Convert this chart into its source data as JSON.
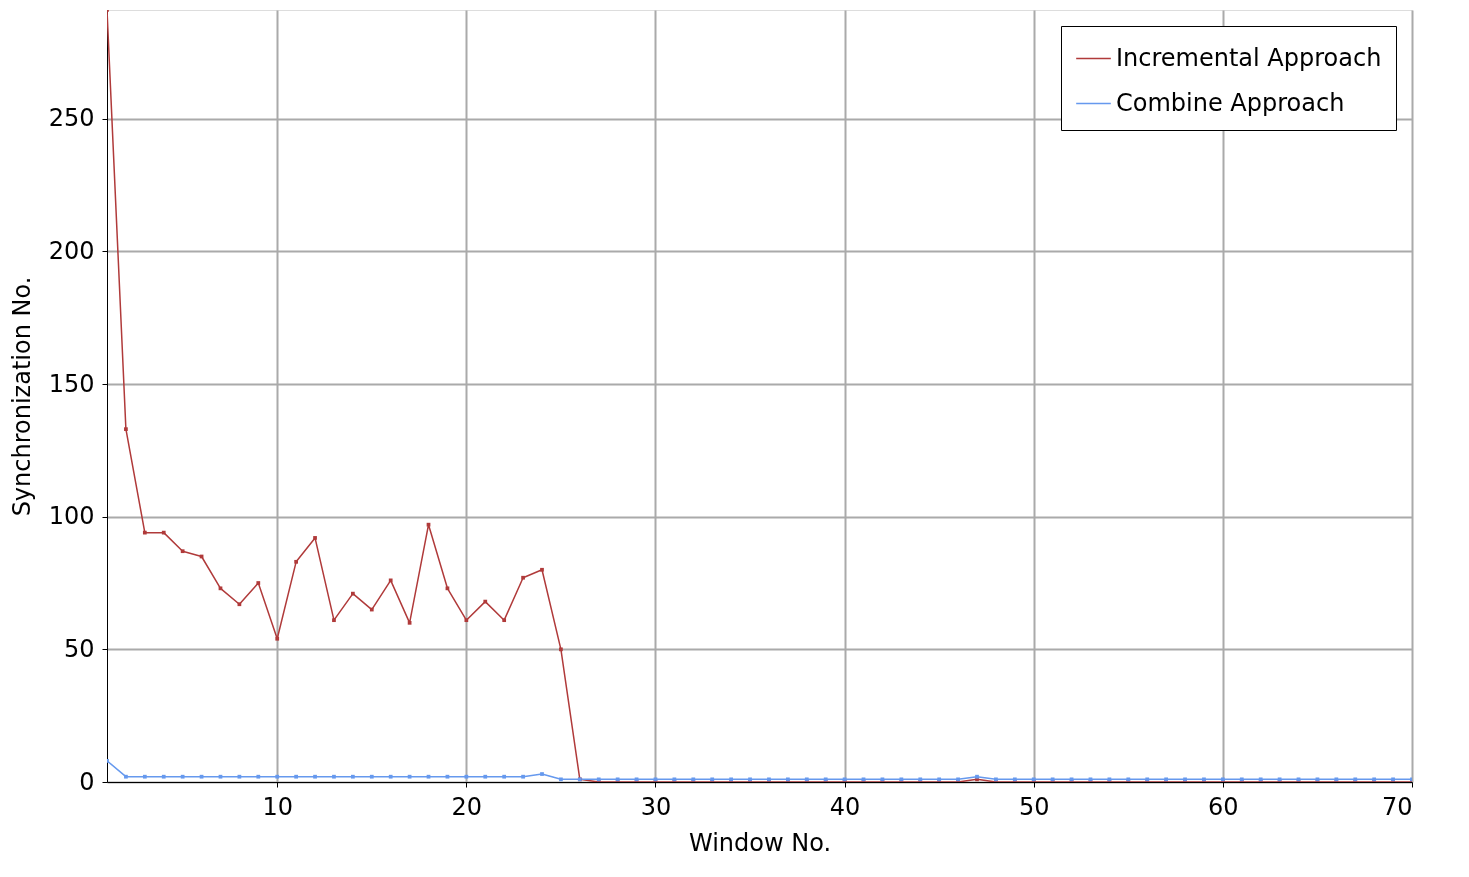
{
  "chart_data": {
    "type": "line",
    "xlabel": "Window No.",
    "ylabel": "Synchronization No.",
    "x": [
      1,
      2,
      3,
      4,
      5,
      6,
      7,
      8,
      9,
      10,
      11,
      12,
      13,
      14,
      15,
      16,
      17,
      18,
      19,
      20,
      21,
      22,
      23,
      24,
      25,
      26,
      27,
      28,
      29,
      30,
      31,
      32,
      33,
      34,
      35,
      36,
      37,
      38,
      39,
      40,
      41,
      42,
      43,
      44,
      45,
      46,
      47,
      48,
      49,
      50,
      51,
      52,
      53,
      54,
      55,
      56,
      57,
      58,
      59,
      60,
      61,
      62,
      63,
      64,
      65,
      66,
      67,
      68,
      69,
      70
    ],
    "series": [
      {
        "name": "Incremental Approach",
        "color": "#b03a3a",
        "values": [
          291,
          133,
          94,
          94,
          87,
          85,
          73,
          67,
          75,
          54,
          83,
          92,
          61,
          71,
          65,
          76,
          60,
          97,
          73,
          61,
          68,
          61,
          77,
          80,
          50,
          1,
          0,
          0,
          0,
          0,
          0,
          0,
          0,
          0,
          0,
          0,
          0,
          0,
          0,
          0,
          0,
          0,
          0,
          0,
          0,
          0,
          1,
          0,
          0,
          0,
          0,
          0,
          0,
          0,
          0,
          0,
          0,
          0,
          0,
          0,
          0,
          0,
          0,
          0,
          0,
          0,
          0,
          0,
          0,
          0
        ]
      },
      {
        "name": "Combine Approach",
        "color": "#6699ee",
        "values": [
          8,
          2,
          2,
          2,
          2,
          2,
          2,
          2,
          2,
          2,
          2,
          2,
          2,
          2,
          2,
          2,
          2,
          2,
          2,
          2,
          2,
          2,
          2,
          3,
          1,
          1,
          1,
          1,
          1,
          1,
          1,
          1,
          1,
          1,
          1,
          1,
          1,
          1,
          1,
          1,
          1,
          1,
          1,
          1,
          1,
          1,
          2,
          1,
          1,
          1,
          1,
          1,
          1,
          1,
          1,
          1,
          1,
          1,
          1,
          1,
          1,
          1,
          1,
          1,
          1,
          1,
          1,
          1,
          1,
          1
        ]
      }
    ],
    "xlim": [
      1,
      70
    ],
    "xticks": [
      10,
      20,
      30,
      40,
      50,
      60,
      70
    ],
    "ylim": [
      0,
      291
    ],
    "yticks": [
      0,
      50,
      100,
      150,
      200,
      250
    ],
    "grid": true,
    "legend": "top right",
    "marker": "square",
    "line_style": "solid"
  }
}
